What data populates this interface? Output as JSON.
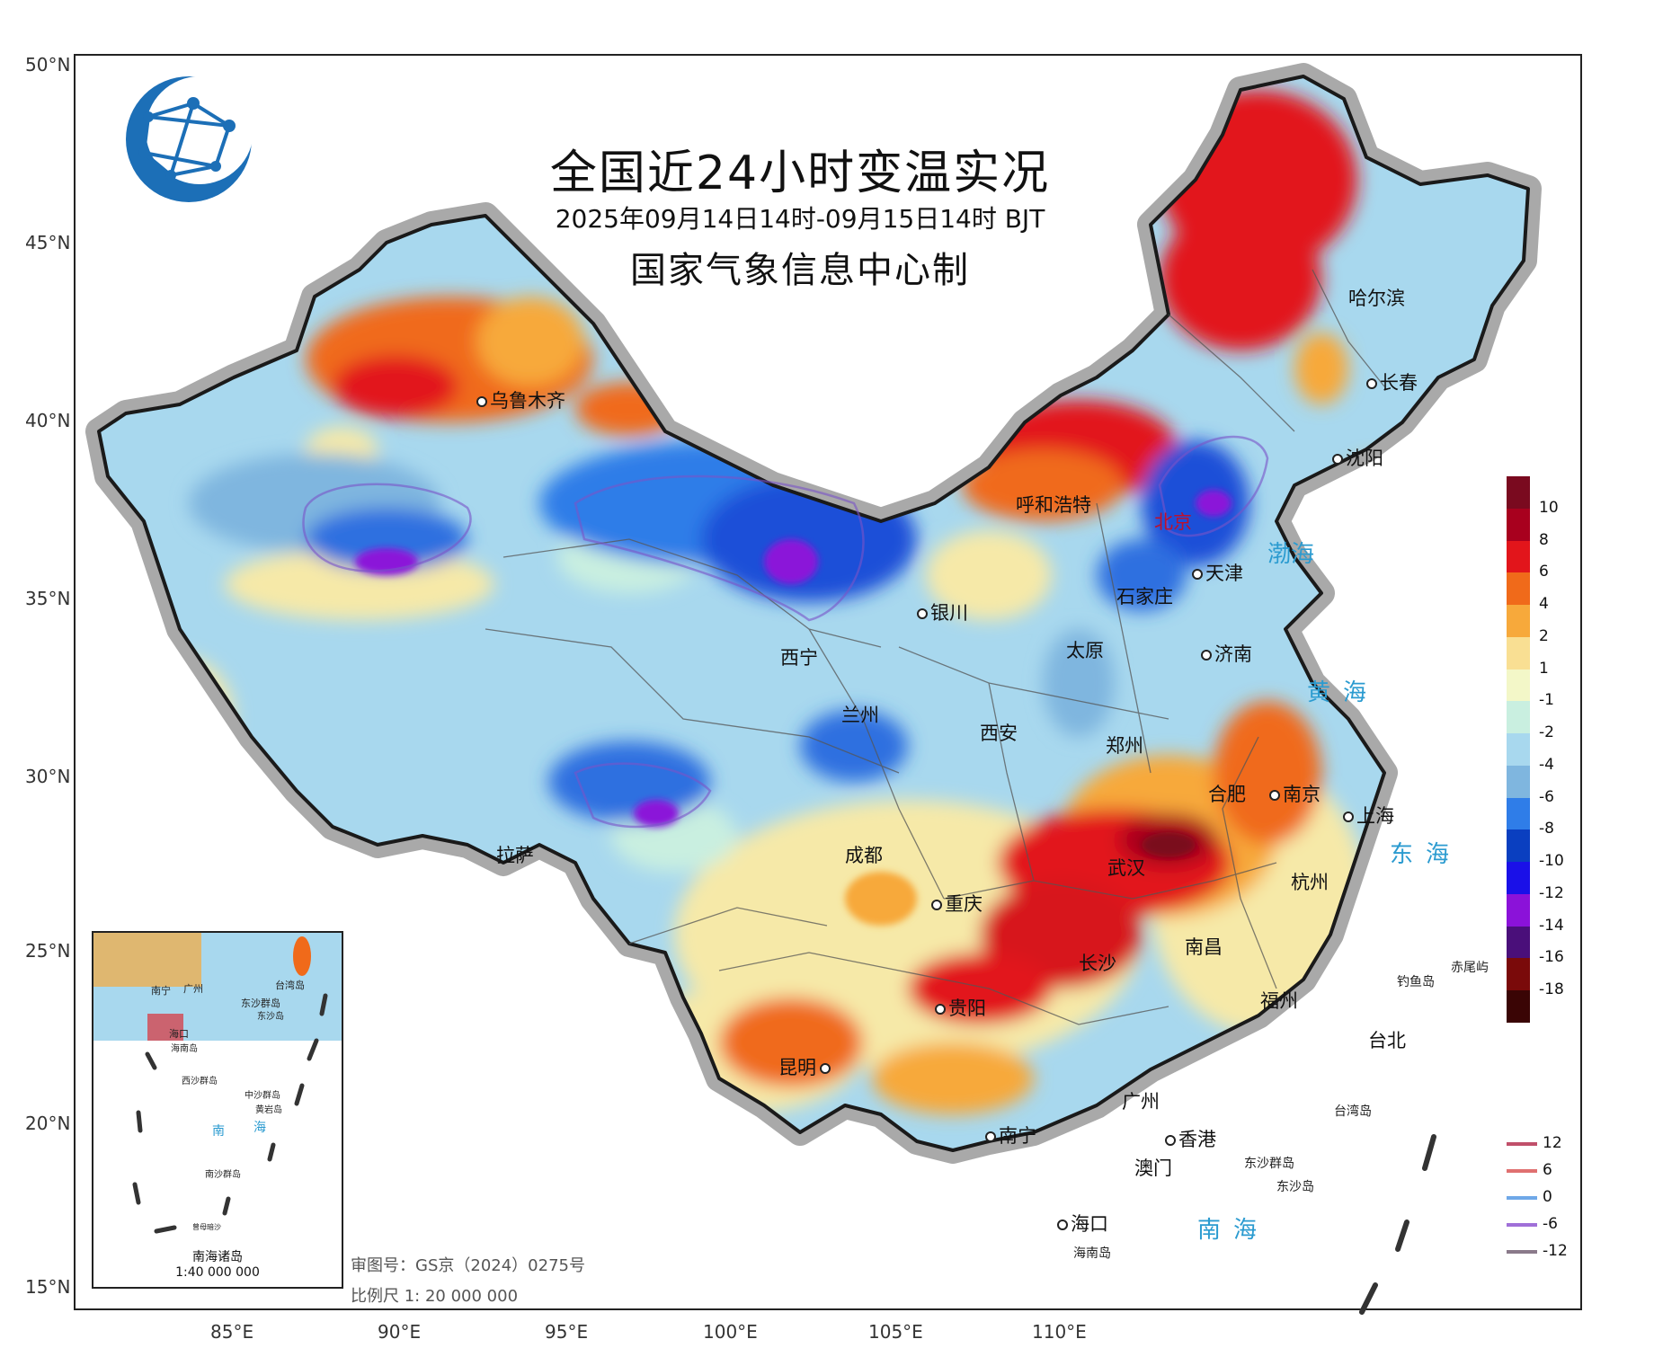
{
  "map": {
    "title": "全国近24小时变温实况",
    "subtitle": "2025年09月14日14时-09月15日14时 BJT",
    "issuer": "国家气象信息中心制",
    "lat_labels": [
      "50°N",
      "45°N",
      "40°N",
      "35°N",
      "30°N",
      "25°N",
      "20°N",
      "15°N"
    ],
    "lon_labels": [
      "85°E",
      "90°E",
      "95°E",
      "100°E",
      "105°E",
      "110°E"
    ],
    "cities": [
      {
        "name": "乌鲁木齐"
      },
      {
        "name": "哈尔滨"
      },
      {
        "name": "长春"
      },
      {
        "name": "沈阳"
      },
      {
        "name": "呼和浩特"
      },
      {
        "name": "北京"
      },
      {
        "name": "天津"
      },
      {
        "name": "石家庄"
      },
      {
        "name": "银川"
      },
      {
        "name": "太原"
      },
      {
        "name": "济南"
      },
      {
        "name": "西宁"
      },
      {
        "name": "兰州"
      },
      {
        "name": "西安"
      },
      {
        "name": "郑州"
      },
      {
        "name": "合肥"
      },
      {
        "name": "南京"
      },
      {
        "name": "上海"
      },
      {
        "name": "拉萨"
      },
      {
        "name": "成都"
      },
      {
        "name": "武汉"
      },
      {
        "name": "杭州"
      },
      {
        "name": "重庆"
      },
      {
        "name": "南昌"
      },
      {
        "name": "长沙"
      },
      {
        "name": "福州"
      },
      {
        "name": "贵阳"
      },
      {
        "name": "台北"
      },
      {
        "name": "昆明"
      },
      {
        "name": "广州"
      },
      {
        "name": "南宁"
      },
      {
        "name": "香港"
      },
      {
        "name": "澳门"
      },
      {
        "name": "海口"
      }
    ],
    "seas": [
      "渤海",
      "黄海",
      "东海",
      "南海"
    ],
    "islands": [
      "钓鱼岛",
      "赤尾屿",
      "台湾岛",
      "东沙群岛",
      "东沙岛",
      "海南岛"
    ],
    "review_no": "审图号：GS京（2024）0275号",
    "scale": "比例尺 1: 20 000 000",
    "inset": {
      "title": "南海诸岛",
      "scale": "1:40 000 000",
      "labels": [
        "南宁",
        "广州",
        "台湾岛",
        "海口",
        "东沙群岛",
        "海南岛",
        "东沙岛",
        "西沙群岛",
        "中沙群岛",
        "黄岩岛",
        "南",
        "海",
        "南沙群岛",
        "曾母暗沙"
      ]
    }
  },
  "legend": {
    "fill_labels": [
      "10",
      "8",
      "6",
      "4",
      "2",
      "1",
      "-1",
      "-2",
      "-4",
      "-6",
      "-8",
      "-10",
      "-12",
      "-14",
      "-16",
      "-18"
    ],
    "fill_colors": [
      "#7a0a1f",
      "#a8001e",
      "#e2151b",
      "#f06a1a",
      "#f7a93b",
      "#f9df93",
      "#f3f7c8",
      "#c9efe0",
      "#a8d8ee",
      "#7fb6df",
      "#2f7de8",
      "#0a3fc0",
      "#1a10e8",
      "#8b12d9",
      "#4a0f7a",
      "#7a0a0a",
      "#3a0505"
    ],
    "line_labels": [
      "12",
      "6",
      "0",
      "-6",
      "-12"
    ],
    "line_colors": [
      "#c0506a",
      "#e07070",
      "#6fa8e8",
      "#a070d8",
      "#8a7a8a"
    ]
  },
  "colors": {
    "warm_strong": "#d7191c",
    "warm": "#f48c2a",
    "neutral": "#f6f1c4",
    "cool": "#a8d8ee",
    "cold": "#2f6fe0",
    "very_cold": "#8b12d9",
    "sea_label": "#2b9bd0",
    "logo_blue": "#1c6fb7"
  }
}
